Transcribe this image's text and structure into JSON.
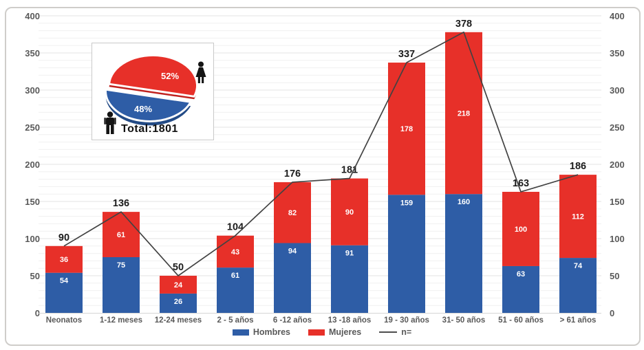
{
  "chart_data": {
    "type": "bar",
    "subtype": "stacked-bars-with-total-line",
    "title": "",
    "xlabel": "",
    "ylabel": "",
    "categories": [
      "Neonatos",
      "1-12 meses",
      "12-24 meses",
      "2 - 5 años",
      "6 -12 años",
      "13 -18 años",
      "19 - 30 años",
      "31- 50 años",
      "51 - 60 años",
      "> 61 años"
    ],
    "series": [
      {
        "name": "Hombres",
        "color": "#2E5DA6",
        "values": [
          54,
          75,
          26,
          61,
          94,
          91,
          159,
          160,
          63,
          74
        ]
      },
      {
        "name": "Mujeres",
        "color": "#E73029",
        "values": [
          36,
          61,
          24,
          43,
          82,
          90,
          178,
          218,
          100,
          112
        ]
      }
    ],
    "totals": [
      90,
      136,
      50,
      104,
      176,
      181,
      337,
      378,
      163,
      186
    ],
    "line": {
      "name": "n=",
      "color": "#424242",
      "values": [
        90,
        136,
        50,
        104,
        176,
        181,
        337,
        378,
        163,
        186
      ]
    },
    "ylim": [
      0,
      400
    ],
    "ytick_step": 50,
    "minor_grid_step": 10,
    "grid": true,
    "dual_y_axis": true,
    "legend_position": "bottom"
  },
  "legend": {
    "items": [
      {
        "label": "Hombres",
        "color": "#2E5DA6",
        "type": "swatch"
      },
      {
        "label": "Mujeres",
        "color": "#E73029",
        "type": "swatch"
      },
      {
        "label": "n=",
        "color": "#4d4d4d",
        "type": "line"
      }
    ]
  },
  "inset": {
    "pie": {
      "slices": [
        {
          "label": "52%",
          "value": 52,
          "color": "#E73029",
          "icon": "female-icon"
        },
        {
          "label": "48%",
          "value": 48,
          "color": "#2E5DA6",
          "icon": "male-icon"
        }
      ]
    },
    "total_label": "Total:1801"
  },
  "colors": {
    "hombres_blue": "#2E5DA6",
    "mujeres_red": "#E73029",
    "n_line": "#424242",
    "axis_text": "#595959",
    "grid_major": "#e3e3e3",
    "grid_minor": "#f0f0f0"
  }
}
